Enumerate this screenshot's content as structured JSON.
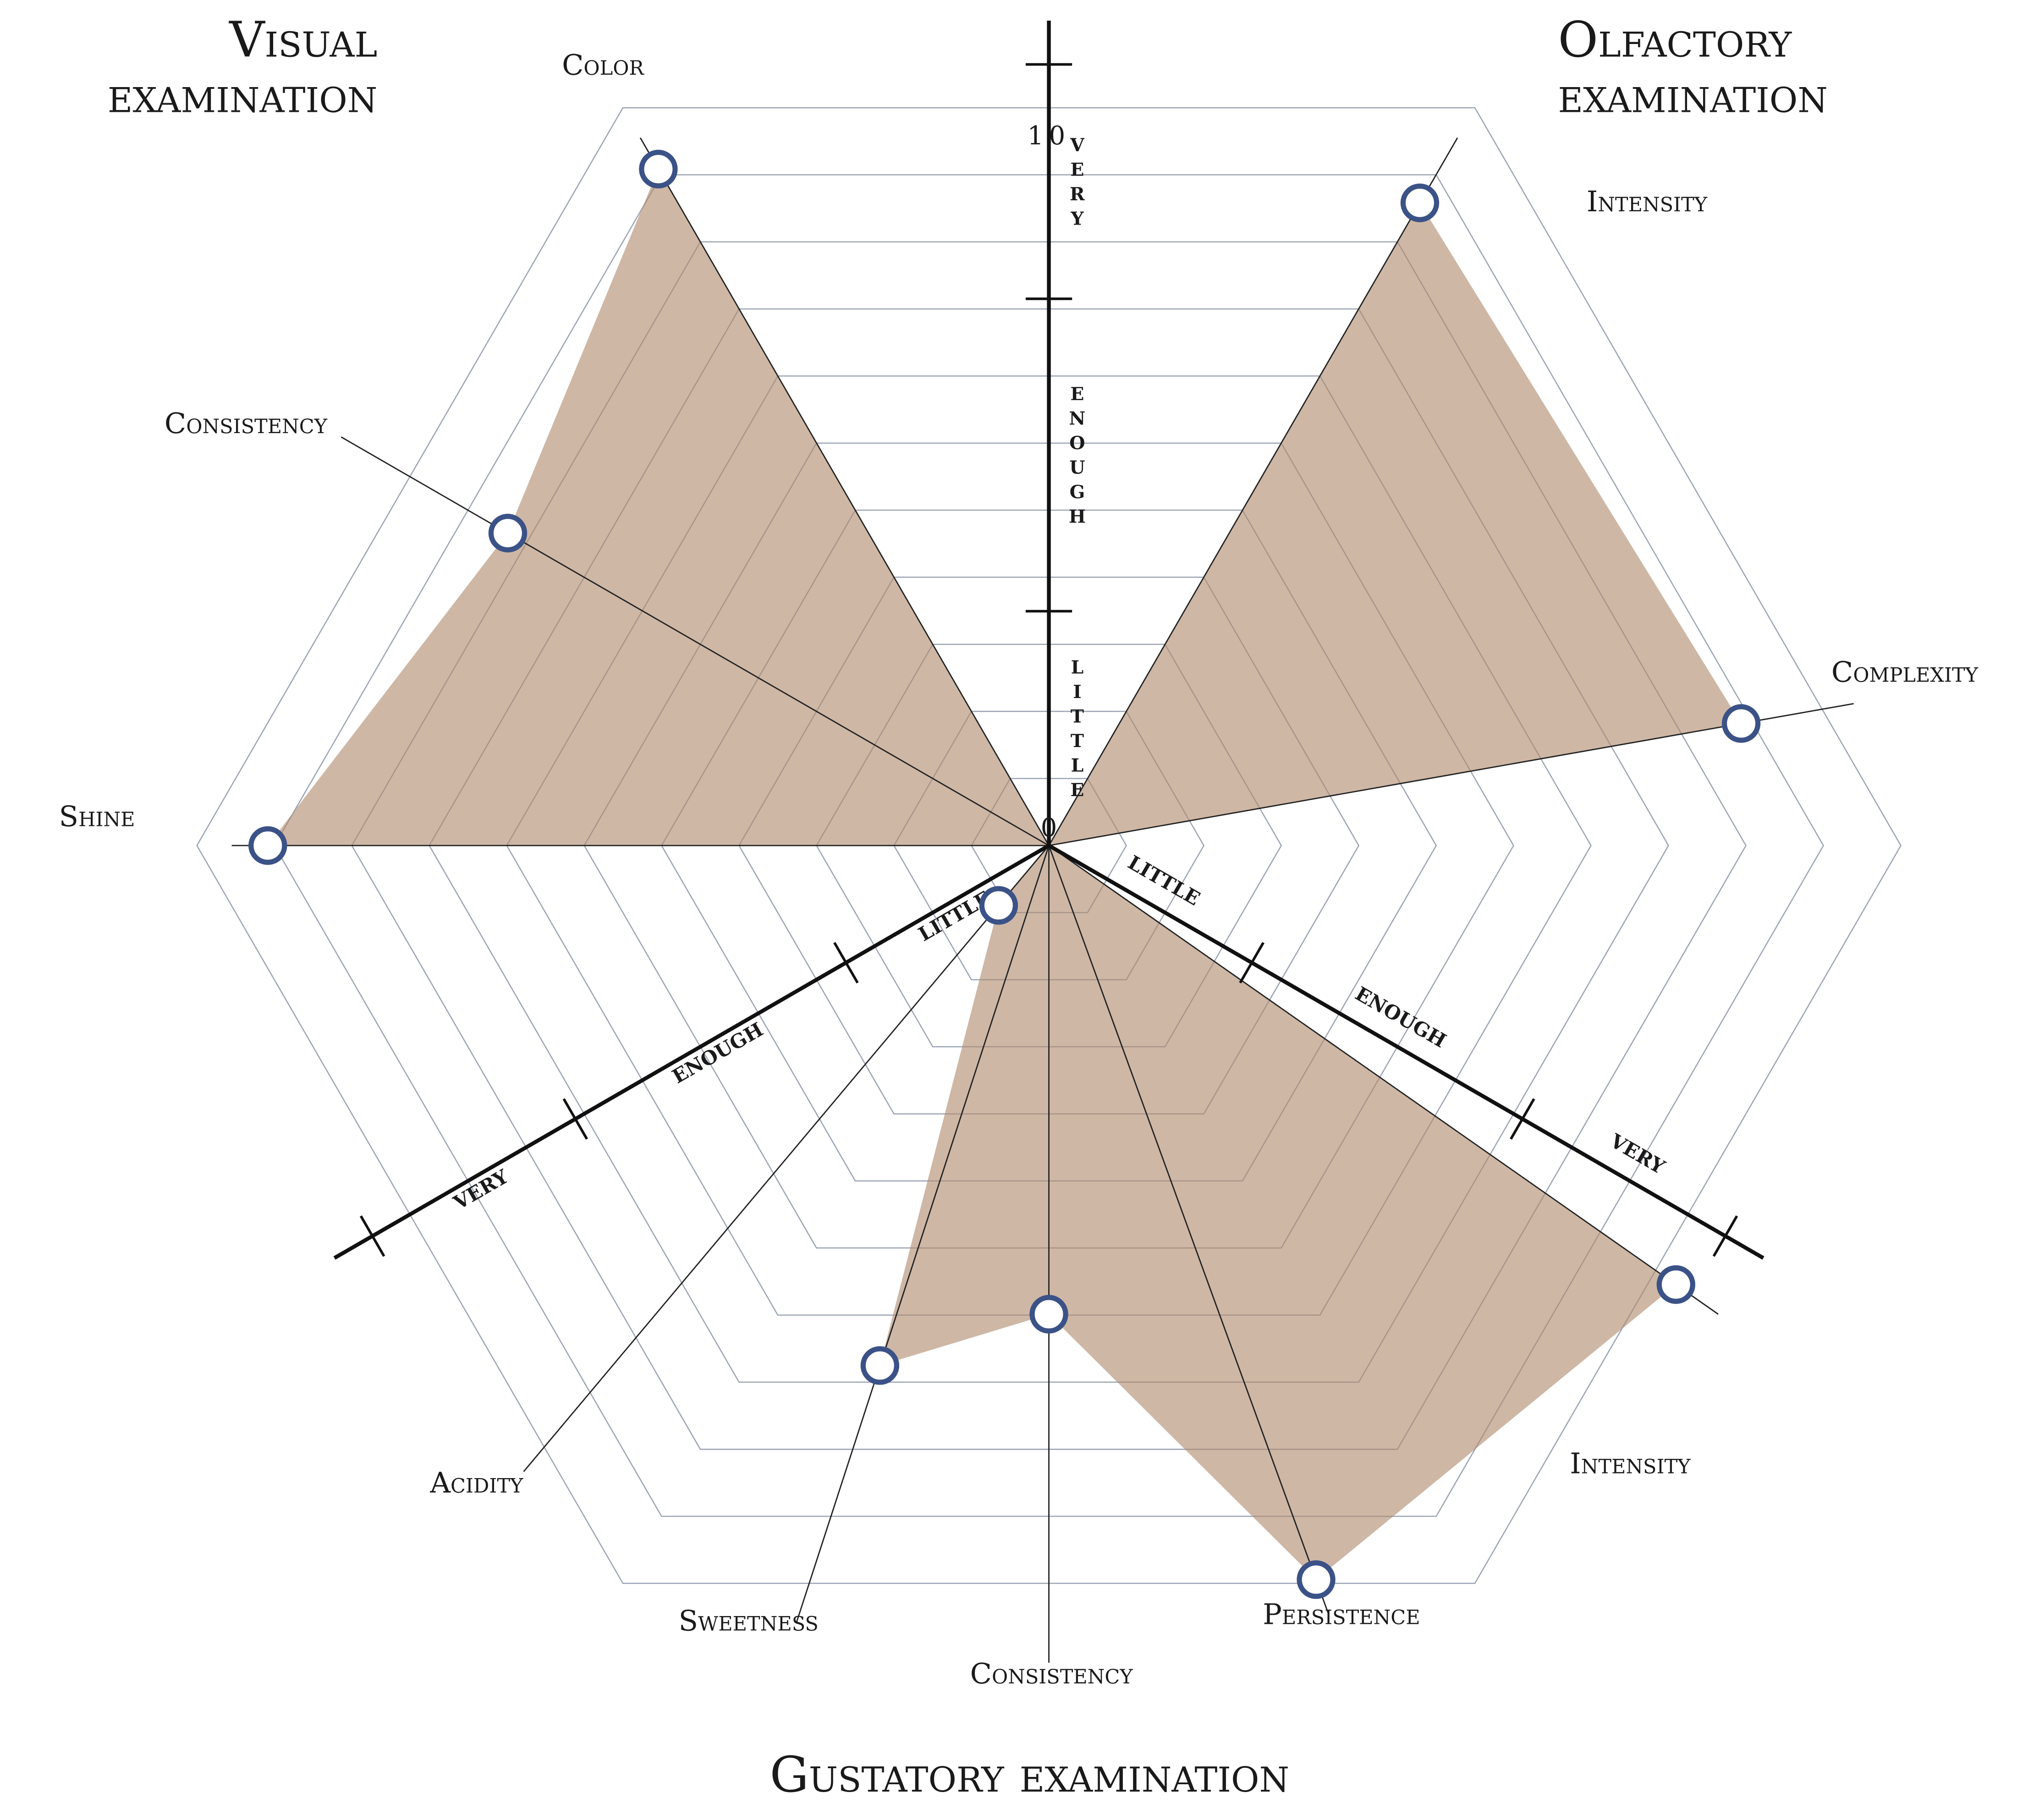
{
  "chart_data": {
    "type": "radar",
    "scale": {
      "min": 0,
      "max": 10,
      "min_label": "0",
      "max_label": "10"
    },
    "grid": true,
    "fill_color": "#b08a6e",
    "marker_color": "#3b5287",
    "grid_color": "#9aa3b3",
    "intensity_bands": [
      {
        "label": "LITTLE",
        "from": 0,
        "to": 3
      },
      {
        "label": "ENOUGH",
        "from": 3,
        "to": 7
      },
      {
        "label": "VERY",
        "from": 7,
        "to": 10
      }
    ],
    "groups": [
      {
        "title": [
          "Visual",
          "examination"
        ],
        "sectors": [
          {
            "label": "Color",
            "value": 10
          },
          {
            "label": "Consistency",
            "value": 8
          },
          {
            "label": "Shine",
            "value": 10
          }
        ]
      },
      {
        "title": [
          "Olfactory",
          "examination"
        ],
        "sectors": [
          {
            "label": "Intensity",
            "value": 9.5
          },
          {
            "label": "Complexity",
            "value": 9
          }
        ]
      },
      {
        "title": [
          "Gustatory examination"
        ],
        "sectors": [
          {
            "label": "Intensity",
            "value": 9.8
          },
          {
            "label": "Persistence",
            "value": 10
          },
          {
            "label": "Consistency",
            "value": 6
          },
          {
            "label": "Sweetness",
            "value": 7
          },
          {
            "label": "Acidity",
            "value": 1
          }
        ]
      }
    ]
  }
}
